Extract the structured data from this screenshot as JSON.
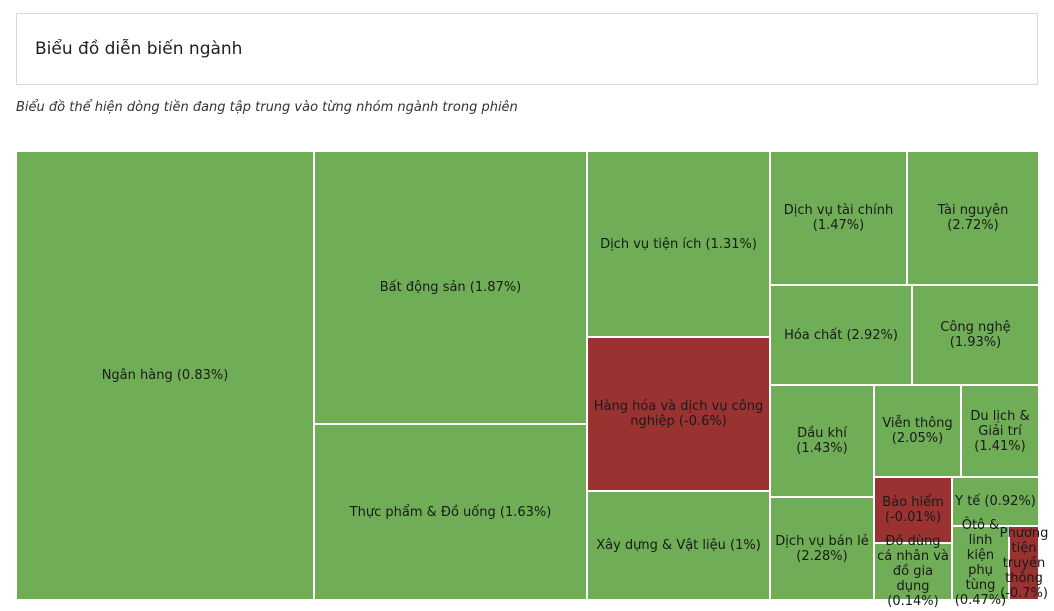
{
  "header": {
    "title": "Biểu đồ diễn biến ngành",
    "subtitle": "Biểu đồ thể hiện dòng tiền đang tập trung vào từng nhóm ngành trong phiên"
  },
  "colors": {
    "positive": "#6fad56",
    "negative": "#9b3232",
    "border": "#ffffff"
  },
  "chart_data": {
    "type": "treemap",
    "title": "Biểu đồ diễn biến ngành",
    "items": [
      {
        "name": "Ngân hàng",
        "change": 0.83,
        "label": "Ngân hàng (0.83%)"
      },
      {
        "name": "Bất động sản",
        "change": 1.87,
        "label": "Bất động sản (1.87%)"
      },
      {
        "name": "Thực phẩm & Đồ uống",
        "change": 1.63,
        "label": "Thực phẩm & Đồ uống (1.63%)"
      },
      {
        "name": "Dịch vụ tiện ích",
        "change": 1.31,
        "label": "Dịch vụ tiện ích (1.31%)"
      },
      {
        "name": "Hàng hóa và dịch vụ công nghiệp",
        "change": -0.6,
        "label": "Hàng hóa và dịch vụ công nghiệp (-0.6%)"
      },
      {
        "name": "Xây dựng & Vật liệu",
        "change": 1,
        "label": "Xây dựng & Vật liệu (1%)"
      },
      {
        "name": "Dịch vụ tài chính",
        "change": 1.47,
        "label": "Dịch vụ tài chính (1.47%)"
      },
      {
        "name": "Tài nguyên",
        "change": 2.72,
        "label": "Tài nguyên (2.72%)"
      },
      {
        "name": "Hóa chất",
        "change": 2.92,
        "label": "Hóa chất (2.92%)"
      },
      {
        "name": "Công nghệ",
        "change": 1.93,
        "label": "Công nghệ (1.93%)"
      },
      {
        "name": "Dầu khí",
        "change": 1.43,
        "label": "Dầu khí (1.43%)"
      },
      {
        "name": "Viễn thông",
        "change": 2.05,
        "label": "Viễn thông (2.05%)"
      },
      {
        "name": "Du lịch & Giải trí",
        "change": 1.41,
        "label": "Du lịch & Giải trí (1.41%)"
      },
      {
        "name": "Dịch vụ bán lẻ",
        "change": 2.28,
        "label": "Dịch vụ bán lẻ (2.28%)"
      },
      {
        "name": "Bảo hiểm",
        "change": -0.01,
        "label": "Bảo hiểm (-0.01%)"
      },
      {
        "name": "Y tế",
        "change": 0.92,
        "label": "Y tế (0.92%)"
      },
      {
        "name": "Đồ dùng cá nhân và đồ gia dụng",
        "change": 0.14,
        "label": "Đồ dùng cá nhân và đồ gia dụng (0.14%)"
      },
      {
        "name": "Ôtô & linh kiện phụ tùng",
        "change": 0.47,
        "label": "Ôtô & linh kiện phụ tùng (0.47%)"
      },
      {
        "name": "Phương tiện truyền thông",
        "change": -0.7,
        "label": "Phương tiện truyền thông (-0.7%)"
      }
    ]
  }
}
